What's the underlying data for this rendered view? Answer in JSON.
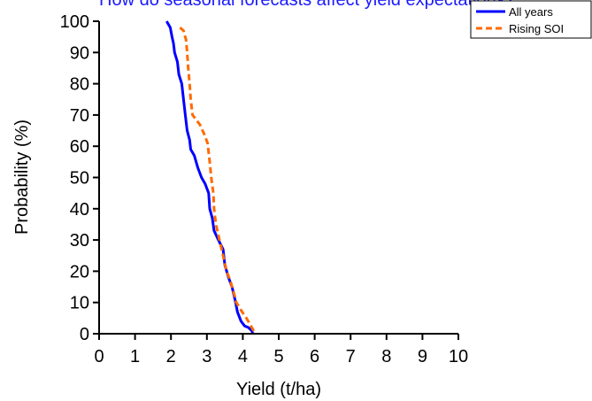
{
  "chart_data": {
    "type": "line",
    "title": "How do seasonal forecasts affect yield expectations?",
    "xlabel": "Yield (t/ha)",
    "ylabel": "Probability (%)",
    "xlim": [
      0,
      10
    ],
    "ylim": [
      0,
      100
    ],
    "xticks": [
      0,
      1,
      2,
      3,
      4,
      5,
      6,
      7,
      8,
      9,
      10
    ],
    "yticks": [
      0,
      10,
      20,
      30,
      40,
      50,
      60,
      70,
      80,
      90,
      100
    ],
    "grid": false,
    "legend_position": "top-right",
    "series": [
      {
        "name": "All years",
        "color": "#0000ff",
        "dash": "solid",
        "points": [
          [
            1.88,
            100
          ],
          [
            1.98,
            98
          ],
          [
            2.03,
            95
          ],
          [
            2.07,
            93
          ],
          [
            2.1,
            90
          ],
          [
            2.18,
            87
          ],
          [
            2.22,
            83
          ],
          [
            2.3,
            80
          ],
          [
            2.35,
            75
          ],
          [
            2.4,
            70
          ],
          [
            2.45,
            65
          ],
          [
            2.52,
            62
          ],
          [
            2.55,
            59
          ],
          [
            2.65,
            57
          ],
          [
            2.75,
            53
          ],
          [
            2.85,
            50
          ],
          [
            2.95,
            48
          ],
          [
            3.05,
            45
          ],
          [
            3.08,
            40
          ],
          [
            3.15,
            37
          ],
          [
            3.2,
            33
          ],
          [
            3.32,
            30
          ],
          [
            3.45,
            27
          ],
          [
            3.5,
            22
          ],
          [
            3.6,
            18
          ],
          [
            3.7,
            15
          ],
          [
            3.8,
            10
          ],
          [
            3.85,
            7
          ],
          [
            3.95,
            4
          ],
          [
            4.05,
            2.5
          ],
          [
            4.15,
            2
          ],
          [
            4.25,
            1
          ],
          [
            4.28,
            0
          ]
        ]
      },
      {
        "name": "Rising SOI",
        "color": "#ff6a00",
        "dash": "dashed",
        "points": [
          [
            2.25,
            98
          ],
          [
            2.35,
            97
          ],
          [
            2.42,
            94
          ],
          [
            2.45,
            90
          ],
          [
            2.48,
            85
          ],
          [
            2.52,
            80
          ],
          [
            2.55,
            75
          ],
          [
            2.6,
            70
          ],
          [
            2.8,
            67
          ],
          [
            2.92,
            64
          ],
          [
            3.02,
            61
          ],
          [
            3.08,
            55
          ],
          [
            3.12,
            50
          ],
          [
            3.18,
            45
          ],
          [
            3.2,
            40
          ],
          [
            3.25,
            35
          ],
          [
            3.35,
            30
          ],
          [
            3.45,
            25
          ],
          [
            3.55,
            20
          ],
          [
            3.65,
            17
          ],
          [
            3.75,
            13
          ],
          [
            3.82,
            10
          ],
          [
            3.95,
            7.5
          ],
          [
            4.1,
            5
          ],
          [
            4.2,
            3
          ],
          [
            4.3,
            1
          ],
          [
            4.35,
            0
          ]
        ]
      }
    ]
  }
}
